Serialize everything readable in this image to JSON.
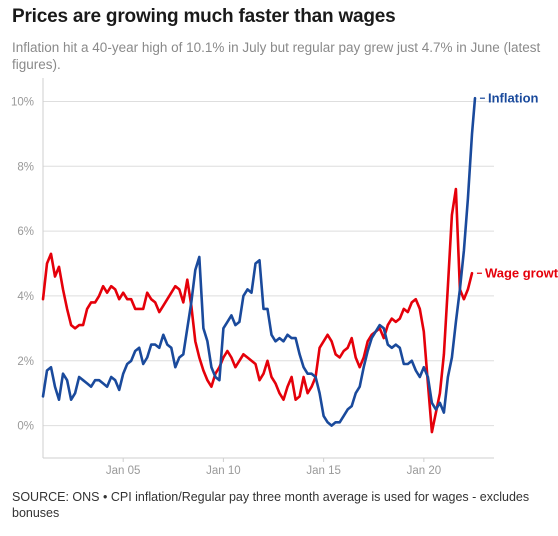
{
  "title": "Prices are growing much faster than wages",
  "subtitle": "Inflation hit a 40-year high of 10.1% in July but regular pay grew just 4.7% in June (latest figures).",
  "source": "SOURCE: ONS • CPI inflation/Regular pay three month average is used for wages - excludes bonuses",
  "colors": {
    "inflation": "#1a4a9c",
    "wage": "#e5000a",
    "grid": "#dedede",
    "axis_text": "#999999"
  },
  "chart_data": {
    "type": "line",
    "title": "Prices are growing much faster than wages",
    "xlabel": "",
    "ylabel": "",
    "xlim": [
      2001.0,
      2023.5
    ],
    "ylim": [
      -1,
      10.6
    ],
    "x_ticks": [
      {
        "x": 2005,
        "label": "Jan 05"
      },
      {
        "x": 2010,
        "label": "Jan 10"
      },
      {
        "x": 2015,
        "label": "Jan 15"
      },
      {
        "x": 2020,
        "label": "Jan 20"
      }
    ],
    "y_ticks": [
      {
        "y": 0,
        "label": "0%"
      },
      {
        "y": 2,
        "label": "2%"
      },
      {
        "y": 4,
        "label": "4%"
      },
      {
        "y": 6,
        "label": "6%"
      },
      {
        "y": 8,
        "label": "8%"
      },
      {
        "y": 10,
        "label": "10%"
      }
    ],
    "grid": true,
    "series": [
      {
        "name": "Inflation",
        "color": "#1a4a9c",
        "x": [
          2001.0,
          2001.2,
          2001.4,
          2001.6,
          2001.8,
          2002.0,
          2002.2,
          2002.4,
          2002.6,
          2002.8,
          2003.0,
          2003.2,
          2003.4,
          2003.6,
          2003.8,
          2004.0,
          2004.2,
          2004.4,
          2004.6,
          2004.8,
          2005.0,
          2005.2,
          2005.4,
          2005.6,
          2005.8,
          2006.0,
          2006.2,
          2006.4,
          2006.6,
          2006.8,
          2007.0,
          2007.2,
          2007.4,
          2007.6,
          2007.8,
          2008.0,
          2008.2,
          2008.4,
          2008.6,
          2008.8,
          2009.0,
          2009.2,
          2009.4,
          2009.6,
          2009.8,
          2010.0,
          2010.2,
          2010.4,
          2010.6,
          2010.8,
          2011.0,
          2011.2,
          2011.4,
          2011.6,
          2011.8,
          2012.0,
          2012.2,
          2012.4,
          2012.6,
          2012.8,
          2013.0,
          2013.2,
          2013.4,
          2013.6,
          2013.8,
          2014.0,
          2014.2,
          2014.4,
          2014.6,
          2014.8,
          2015.0,
          2015.2,
          2015.4,
          2015.6,
          2015.8,
          2016.0,
          2016.2,
          2016.4,
          2016.6,
          2016.8,
          2017.0,
          2017.2,
          2017.4,
          2017.6,
          2017.8,
          2018.0,
          2018.2,
          2018.4,
          2018.6,
          2018.8,
          2019.0,
          2019.2,
          2019.4,
          2019.6,
          2019.8,
          2020.0,
          2020.2,
          2020.4,
          2020.6,
          2020.8,
          2021.0,
          2021.2,
          2021.4,
          2021.6,
          2021.8,
          2022.0,
          2022.2,
          2022.4,
          2022.55
        ],
        "values": [
          0.9,
          1.7,
          1.8,
          1.2,
          0.8,
          1.6,
          1.4,
          0.8,
          1.0,
          1.5,
          1.4,
          1.3,
          1.2,
          1.4,
          1.4,
          1.3,
          1.2,
          1.5,
          1.4,
          1.1,
          1.6,
          1.9,
          2.0,
          2.3,
          2.4,
          1.9,
          2.1,
          2.5,
          2.5,
          2.4,
          2.8,
          2.5,
          2.4,
          1.8,
          2.1,
          2.2,
          3.0,
          3.8,
          4.8,
          5.2,
          3.0,
          2.6,
          1.8,
          1.5,
          1.4,
          3.0,
          3.2,
          3.4,
          3.1,
          3.2,
          4.0,
          4.2,
          4.1,
          5.0,
          5.1,
          3.6,
          3.6,
          2.8,
          2.6,
          2.7,
          2.6,
          2.8,
          2.7,
          2.7,
          2.2,
          1.8,
          1.6,
          1.6,
          1.5,
          1.0,
          0.3,
          0.1,
          0.0,
          0.1,
          0.1,
          0.3,
          0.5,
          0.6,
          1.0,
          1.2,
          1.8,
          2.3,
          2.7,
          2.9,
          3.1,
          3.0,
          2.5,
          2.4,
          2.5,
          2.4,
          1.9,
          1.9,
          2.0,
          1.7,
          1.5,
          1.8,
          1.5,
          0.7,
          0.5,
          0.7,
          0.4,
          1.5,
          2.1,
          3.2,
          4.2,
          5.4,
          7.0,
          9.0,
          10.1
        ]
      },
      {
        "name": "Wage growth",
        "color": "#e5000a",
        "x": [
          2001.0,
          2001.2,
          2001.4,
          2001.6,
          2001.8,
          2002.0,
          2002.2,
          2002.4,
          2002.6,
          2002.8,
          2003.0,
          2003.2,
          2003.4,
          2003.6,
          2003.8,
          2004.0,
          2004.2,
          2004.4,
          2004.6,
          2004.8,
          2005.0,
          2005.2,
          2005.4,
          2005.6,
          2005.8,
          2006.0,
          2006.2,
          2006.4,
          2006.6,
          2006.8,
          2007.0,
          2007.2,
          2007.4,
          2007.6,
          2007.8,
          2008.0,
          2008.2,
          2008.4,
          2008.6,
          2008.8,
          2009.0,
          2009.2,
          2009.4,
          2009.6,
          2009.8,
          2010.0,
          2010.2,
          2010.4,
          2010.6,
          2010.8,
          2011.0,
          2011.2,
          2011.4,
          2011.6,
          2011.8,
          2012.0,
          2012.2,
          2012.4,
          2012.6,
          2012.8,
          2013.0,
          2013.2,
          2013.4,
          2013.6,
          2013.8,
          2014.0,
          2014.2,
          2014.4,
          2014.6,
          2014.8,
          2015.0,
          2015.2,
          2015.4,
          2015.6,
          2015.8,
          2016.0,
          2016.2,
          2016.4,
          2016.6,
          2016.8,
          2017.0,
          2017.2,
          2017.4,
          2017.6,
          2017.8,
          2018.0,
          2018.2,
          2018.4,
          2018.6,
          2018.8,
          2019.0,
          2019.2,
          2019.4,
          2019.6,
          2019.8,
          2020.0,
          2020.2,
          2020.4,
          2020.6,
          2020.8,
          2021.0,
          2021.2,
          2021.4,
          2021.6,
          2021.8,
          2022.0,
          2022.2,
          2022.4
        ],
        "values": [
          3.9,
          5.0,
          5.3,
          4.6,
          4.9,
          4.2,
          3.6,
          3.1,
          3.0,
          3.1,
          3.1,
          3.6,
          3.8,
          3.8,
          4.0,
          4.3,
          4.1,
          4.3,
          4.2,
          3.9,
          4.1,
          3.9,
          3.9,
          3.6,
          3.6,
          3.6,
          4.1,
          3.9,
          3.8,
          3.5,
          3.7,
          3.9,
          4.1,
          4.3,
          4.2,
          3.8,
          4.5,
          3.7,
          2.6,
          2.1,
          1.7,
          1.4,
          1.2,
          1.6,
          1.8,
          2.1,
          2.3,
          2.1,
          1.8,
          2.0,
          2.2,
          2.1,
          2.0,
          1.9,
          1.4,
          1.6,
          2.0,
          1.5,
          1.3,
          1.0,
          0.8,
          1.2,
          1.5,
          0.8,
          0.9,
          1.5,
          1.0,
          1.2,
          1.5,
          2.4,
          2.6,
          2.8,
          2.6,
          2.2,
          2.1,
          2.3,
          2.4,
          2.7,
          2.1,
          1.8,
          2.1,
          2.6,
          2.8,
          2.9,
          3.0,
          2.7,
          3.1,
          3.3,
          3.2,
          3.3,
          3.6,
          3.5,
          3.8,
          3.9,
          3.6,
          2.9,
          1.3,
          -0.2,
          0.4,
          1.0,
          2.2,
          4.3,
          6.5,
          7.3,
          4.2,
          3.9,
          4.2,
          4.7
        ]
      }
    ],
    "annotations": [
      {
        "text": "Inflation",
        "series": "Inflation",
        "at_y": 10.1
      },
      {
        "text": "Wage growth",
        "series": "Wage growth",
        "at_y": 4.7
      }
    ]
  }
}
